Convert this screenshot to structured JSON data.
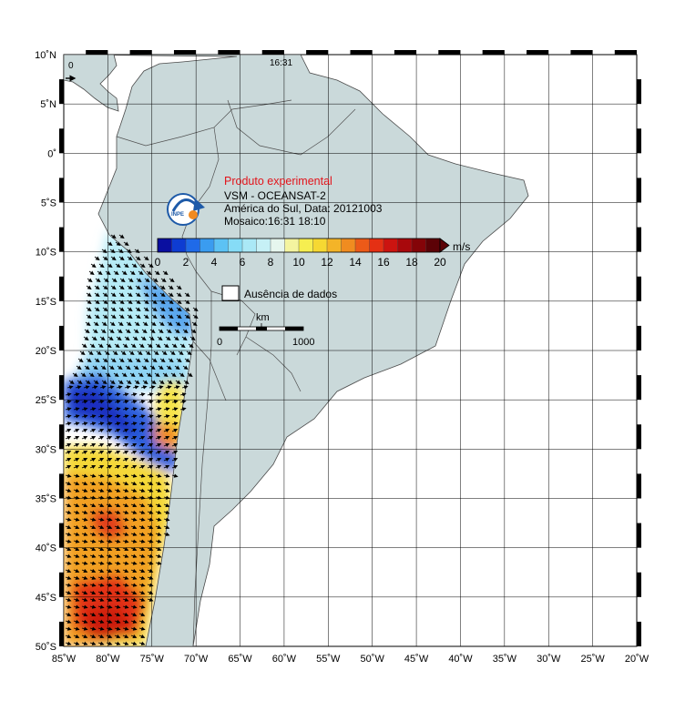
{
  "map": {
    "lon_range": [
      -85,
      -20
    ],
    "lat_range": [
      -50,
      10
    ],
    "lon_ticks": [
      "85˚W",
      "80˚W",
      "75˚W",
      "70˚W",
      "65˚W",
      "60˚W",
      "55˚W",
      "50˚W",
      "45˚W",
      "40˚W",
      "35˚W",
      "30˚W",
      "25˚W",
      "20˚W"
    ],
    "lat_ticks": [
      "10˚N",
      "5˚N",
      "0˚",
      "5˚S",
      "10˚S",
      "15˚S",
      "20˚S",
      "25˚S",
      "30˚S",
      "35˚S",
      "40˚S",
      "45˚S",
      "50˚S"
    ],
    "pass_labels": {
      "start": "0",
      "time": "16:31"
    },
    "colors": {
      "land": "#cad9da",
      "grid": "#000000",
      "border": "#505050"
    }
  },
  "info": {
    "title": "Produto experimental",
    "line1": "VSM - OCEANSAT-2",
    "line2": "América do Sul, Data: 20121003",
    "line3": "Mosaico:16:31 18:10",
    "logo_text": "INPE"
  },
  "colorbar": {
    "unit": "m/s",
    "ticks": [
      "0",
      "2",
      "4",
      "6",
      "8",
      "10",
      "12",
      "14",
      "16",
      "18",
      "20"
    ],
    "range": [
      0,
      20
    ],
    "colors": [
      "#0a0fa0",
      "#0e3cd2",
      "#1f6ae8",
      "#3a9cf0",
      "#5cc2f4",
      "#86dcf6",
      "#aae8f6",
      "#c6f0f6",
      "#e6f6ee",
      "#f4f4a0",
      "#f6ee50",
      "#f6d832",
      "#f4b428",
      "#f08c20",
      "#ec5a18",
      "#e43014",
      "#cc1410",
      "#a8080c",
      "#840408",
      "#5c0206"
    ]
  },
  "no_data": {
    "label": "Ausência de dados"
  },
  "scale_bar": {
    "unit": "km",
    "start": "0",
    "end": "1000"
  }
}
